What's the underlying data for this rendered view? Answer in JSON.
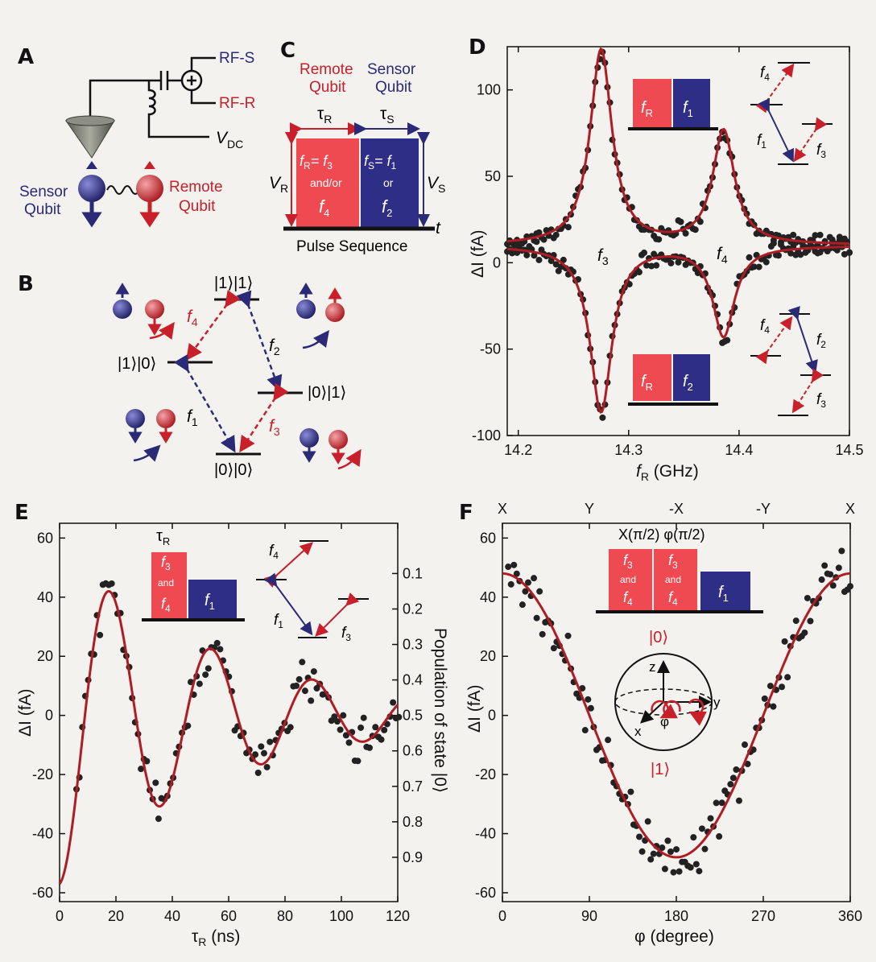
{
  "panels": {
    "a": {
      "letter": "A",
      "rf_s": "RF-S",
      "rf_r": "RF-R",
      "vdc": "V",
      "vdc_sub": "DC",
      "sensor_line1": "Sensor",
      "sensor_line2": "Qubit",
      "remote_line1": "Remote",
      "remote_line2": "Qubit",
      "colors": {
        "sensor": "#2b2a77",
        "remote": "#c8202a"
      }
    },
    "b": {
      "letter": "B",
      "ket11": "|1⟩|1⟩",
      "ket10": "|1⟩|0⟩",
      "ket01": "|0⟩|1⟩",
      "ket00": "|0⟩|0⟩",
      "f1": "f",
      "f1_sub": "1",
      "f2": "f",
      "f2_sub": "2",
      "f3": "f",
      "f3_sub": "3",
      "f4": "f",
      "f4_sub": "4"
    },
    "c": {
      "letter": "C",
      "remote_line1": "Remote",
      "remote_line2": "Qubit",
      "sensor_line1": "Sensor",
      "sensor_line2": "Qubit",
      "tau_r": "τ",
      "tau_r_sub": "R",
      "tau_s": "τ",
      "tau_s_sub": "S",
      "vr": "V",
      "vr_sub": "R",
      "vs": "V",
      "vs_sub": "S",
      "t": "t",
      "red_box_line1": "f",
      "red_box_line1_sub": "R",
      "red_box_eq": "= f",
      "red_box_eq_sub": "3",
      "red_box_andor": "and/or",
      "red_box_f": "f",
      "red_box_f_sub": "4",
      "blue_box_line1": "f",
      "blue_box_line1_sub": "S",
      "blue_box_eq": "= f",
      "blue_box_eq_sub": "1",
      "blue_box_or": "or",
      "blue_box_f": "f",
      "blue_box_f_sub": "2",
      "caption": "Pulse Sequence"
    },
    "d": {
      "letter": "D",
      "inset_top_red": "f",
      "inset_top_red_sub": "R",
      "inset_top_blue": "f",
      "inset_top_blue_sub": "1",
      "inset_bot_red": "f",
      "inset_bot_red_sub": "R",
      "inset_bot_blue": "f",
      "inset_bot_blue_sub": "2",
      "peak_f3": "f",
      "peak_f3_sub": "3",
      "peak_f4": "f",
      "peak_f4_sub": "4",
      "lv": [
        "f",
        "4",
        "f",
        "1",
        "f",
        "3",
        "f",
        "4",
        "f",
        "2",
        "f",
        "3"
      ]
    },
    "e": {
      "letter": "E",
      "tau": "τ",
      "tau_sub": "R",
      "box_red": [
        "f",
        "3",
        "and",
        "f",
        "4"
      ],
      "box_blue": "f",
      "box_blue_sub": "1",
      "lv": [
        "f",
        "4",
        "f",
        "1",
        "f",
        "3"
      ]
    },
    "f": {
      "letter": "F",
      "pulse_label": "X(π/2) φ(π/2)",
      "box_red": [
        "f",
        "3",
        "and",
        "f",
        "4"
      ],
      "box_blue": "f",
      "box_blue_sub": "1",
      "ket0": "|0⟩",
      "ket1": "|1⟩",
      "bz": "z",
      "by": "y",
      "bx": "x",
      "bphi": "φ"
    }
  },
  "chart_data": [
    {
      "id": "D",
      "type": "scatter",
      "xlabel": "f",
      "xlabel_sub": "R",
      "xlabel_unit": " (GHz)",
      "ylabel": "ΔI (fA)",
      "xlim": [
        14.19,
        14.5
      ],
      "ylim": [
        -100,
        125
      ],
      "xticks": [
        14.2,
        14.3,
        14.4,
        14.5
      ],
      "xtick_labels": [
        "14.2",
        "14.3",
        "14.4",
        "14.5"
      ],
      "yticks": [
        -100,
        -50,
        0,
        50,
        100
      ],
      "ytick_labels": [
        "-100",
        "-50",
        "0",
        "50",
        "100"
      ],
      "fit_upper": {
        "offset": 10,
        "peaks": [
          {
            "x0": 14.275,
            "amp": 113,
            "w": 0.012
          },
          {
            "x0": 14.386,
            "amp": 66,
            "w": 0.012
          }
        ]
      },
      "fit_lower": {
        "offset": 10,
        "peaks": [
          {
            "x0": 14.275,
            "amp": -96,
            "w": 0.012
          },
          {
            "x0": 14.386,
            "amp": -52,
            "w": 0.012
          }
        ]
      }
    },
    {
      "id": "E",
      "type": "scatter",
      "xlabel": "τ",
      "xlabel_sub": "R",
      "xlabel_unit": " (ns)",
      "ylabel": "ΔI (fA)",
      "ylabel_right": "Population of state |0⟩",
      "xlim": [
        0,
        120
      ],
      "ylim": [
        -63,
        65
      ],
      "xticks": [
        0,
        20,
        40,
        60,
        80,
        100,
        120
      ],
      "xtick_labels": [
        "0",
        "20",
        "40",
        "60",
        "80",
        "100",
        "120"
      ],
      "yticks": [
        -60,
        -40,
        -20,
        0,
        20,
        40,
        60
      ],
      "ytick_labels": [
        "-60",
        "-40",
        "-20",
        "0",
        "20",
        "40",
        "60"
      ],
      "y2ticks": [
        0.1,
        0.2,
        0.3,
        0.4,
        0.5,
        0.6,
        0.7,
        0.8,
        0.9
      ],
      "y2tick_labels": [
        "0.1",
        "0.2",
        "0.3",
        "0.4",
        "0.5",
        "0.6",
        "0.7",
        "0.8",
        "0.9"
      ],
      "fit": {
        "offset": 0,
        "amp": -57,
        "period": 36,
        "decay": 58
      }
    },
    {
      "id": "F",
      "type": "scatter",
      "xlabel": "φ (degree)",
      "ylabel": "ΔI (fA)",
      "xlim": [
        0,
        360
      ],
      "ylim": [
        -63,
        65
      ],
      "xticks": [
        0,
        90,
        180,
        270,
        360
      ],
      "xtick_labels": [
        "0",
        "90",
        "180",
        "270",
        "360"
      ],
      "top_ticks": [
        "X",
        "Y",
        "-X",
        "-Y",
        "X"
      ],
      "yticks": [
        -60,
        -40,
        -20,
        0,
        20,
        40,
        60
      ],
      "ytick_labels": [
        "-60",
        "-40",
        "-20",
        "0",
        "20",
        "40",
        "60"
      ],
      "fit": {
        "offset": 0,
        "amp": 48,
        "period": 360
      }
    }
  ]
}
